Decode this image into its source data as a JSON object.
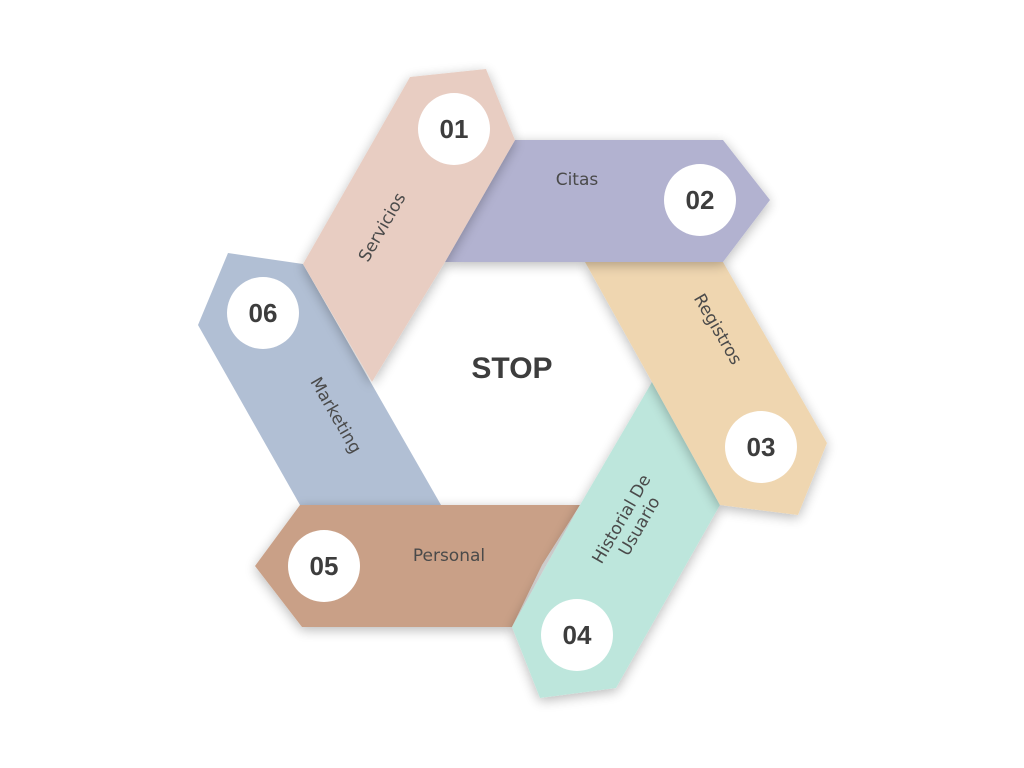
{
  "center": {
    "label": "STOP"
  },
  "segments": [
    {
      "number": "01",
      "label": "Servicios",
      "color": "#e8cdc2"
    },
    {
      "number": "02",
      "label": "Citas",
      "color": "#b2b2d0"
    },
    {
      "number": "03",
      "label": "Registros",
      "color": "#efd6b0"
    },
    {
      "number": "04",
      "label": "Historial De\nUsuario",
      "color": "#bde6dc"
    },
    {
      "number": "05",
      "label": "Personal",
      "color": "#c9a087"
    },
    {
      "number": "06",
      "label": "Marketing",
      "color": "#b1bfd4"
    }
  ]
}
